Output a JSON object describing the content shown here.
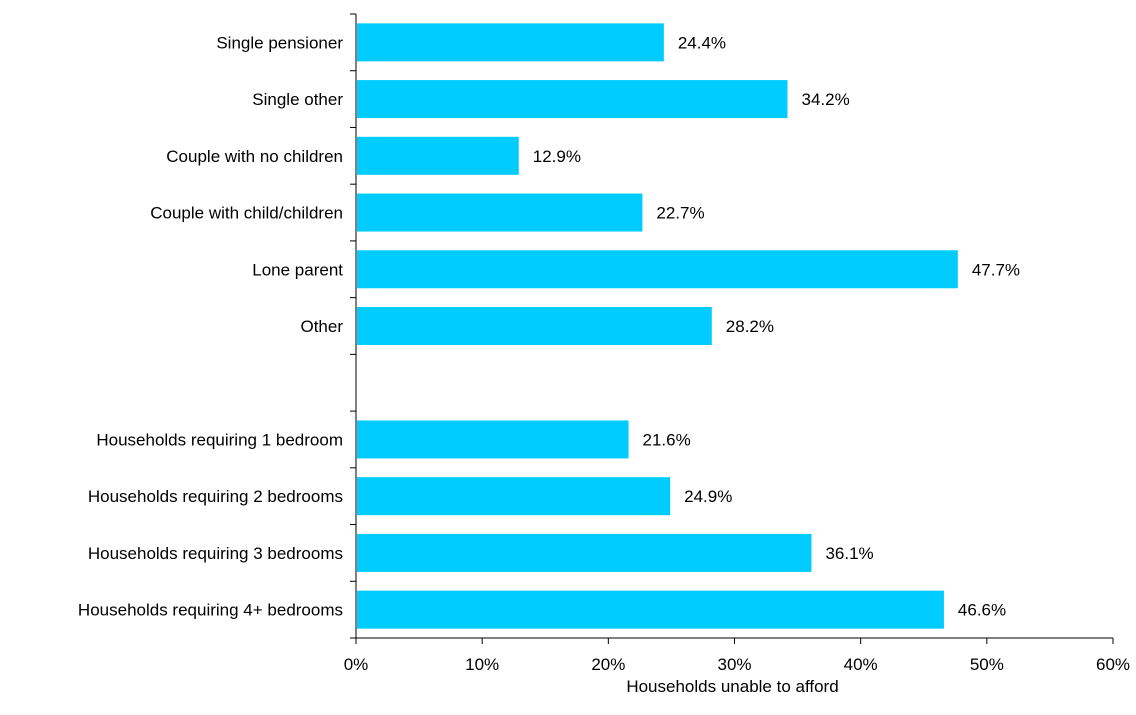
{
  "chart_data": {
    "type": "bar",
    "orientation": "horizontal",
    "categories": [
      "Single pensioner",
      "Single other",
      "Couple with no children",
      "Couple with child/children",
      "Lone parent",
      "Other",
      "",
      "Households requiring 1 bedroom",
      "Households requiring 2 bedrooms",
      "Households requiring 3 bedrooms",
      "Households requiring 4+ bedrooms"
    ],
    "values": [
      24.4,
      34.2,
      12.9,
      22.7,
      47.7,
      28.2,
      null,
      21.6,
      24.9,
      36.1,
      46.6
    ],
    "value_labels": [
      "24.4%",
      "34.2%",
      "12.9%",
      "22.7%",
      "47.7%",
      "28.2%",
      "",
      "21.6%",
      "24.9%",
      "36.1%",
      "46.6%"
    ],
    "x_ticks": [
      "0%",
      "10%",
      "20%",
      "30%",
      "40%",
      "50%",
      "60%"
    ],
    "xlim": [
      0,
      60
    ],
    "xlabel": "Households unable to afford",
    "ylabel": "",
    "title": "",
    "grid": false,
    "bar_color": "#00CCFF"
  }
}
